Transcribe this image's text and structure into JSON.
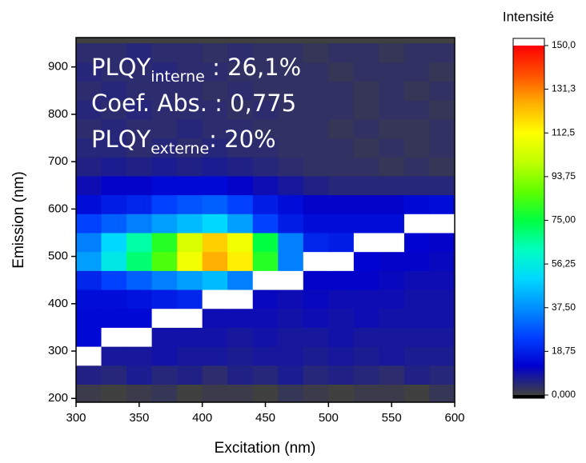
{
  "chart_data": {
    "type": "heatmap",
    "x_label": "Excitation (nm)",
    "y_label": "Emission (nm)",
    "colorbar_title": "Intensité",
    "annotations": [
      {
        "text": "PLQY",
        "sub": "interne",
        "rest": " : 26,1%"
      },
      {
        "text": "Coef. Abs. : 0,775"
      },
      {
        "text": "PLQY",
        "sub": "externe",
        "rest": ": 20%"
      }
    ],
    "x": [
      310,
      330,
      350,
      370,
      390,
      410,
      430,
      450,
      470,
      490,
      510,
      530,
      550,
      570,
      590
    ],
    "y": [
      210,
      250,
      290,
      330,
      370,
      410,
      450,
      490,
      530,
      570,
      610,
      650,
      690,
      730,
      770,
      810,
      850,
      890,
      930
    ],
    "z": [
      [
        1,
        0,
        1,
        2,
        0,
        1,
        1,
        0,
        2,
        1,
        0,
        1,
        1,
        0,
        2
      ],
      [
        6,
        5,
        7,
        5,
        6,
        4,
        6,
        5,
        7,
        5,
        6,
        5,
        4,
        6,
        5
      ],
      [
        160,
        8,
        8,
        9,
        8,
        8,
        7,
        8,
        8,
        7,
        8,
        7,
        8,
        7,
        7
      ],
      [
        14,
        160,
        160,
        9,
        9,
        9,
        8,
        9,
        8,
        8,
        9,
        8,
        8,
        8,
        8
      ],
      [
        14,
        14,
        14,
        160,
        160,
        10,
        10,
        10,
        9,
        10,
        9,
        10,
        9,
        9,
        9
      ],
      [
        15,
        15,
        16,
        18,
        20,
        160,
        160,
        11,
        10,
        11,
        10,
        10,
        10,
        9,
        9
      ],
      [
        20,
        25,
        30,
        35,
        40,
        45,
        35,
        160,
        160,
        12,
        12,
        12,
        11,
        10,
        10
      ],
      [
        40,
        55,
        70,
        85,
        110,
        125,
        115,
        80,
        35,
        160,
        160,
        13,
        12,
        12,
        11
      ],
      [
        35,
        50,
        65,
        80,
        105,
        120,
        110,
        75,
        35,
        20,
        18,
        160,
        160,
        13,
        12
      ],
      [
        25,
        30,
        35,
        40,
        45,
        50,
        40,
        25,
        18,
        15,
        15,
        15,
        15,
        160,
        160
      ],
      [
        15,
        18,
        20,
        25,
        28,
        30,
        25,
        18,
        15,
        12,
        12,
        12,
        12,
        14,
        15
      ],
      [
        10,
        12,
        12,
        14,
        14,
        14,
        12,
        10,
        8,
        6,
        5,
        5,
        5,
        5,
        5
      ],
      [
        6,
        7,
        6,
        7,
        6,
        7,
        6,
        5,
        4,
        3,
        3,
        3,
        2,
        3,
        2
      ],
      [
        5,
        5,
        4,
        5,
        4,
        5,
        4,
        4,
        3,
        3,
        3,
        2,
        3,
        2,
        3
      ],
      [
        4,
        5,
        4,
        4,
        5,
        4,
        4,
        3,
        3,
        3,
        2,
        3,
        2,
        2,
        3
      ],
      [
        5,
        4,
        5,
        4,
        4,
        4,
        3,
        4,
        3,
        3,
        3,
        2,
        3,
        3,
        2
      ],
      [
        4,
        5,
        4,
        4,
        4,
        3,
        4,
        3,
        3,
        3,
        3,
        2,
        3,
        2,
        3
      ],
      [
        5,
        4,
        4,
        5,
        4,
        4,
        3,
        3,
        3,
        3,
        2,
        3,
        3,
        3,
        2
      ],
      [
        4,
        4,
        5,
        4,
        4,
        3,
        4,
        3,
        3,
        2,
        3,
        3,
        2,
        3,
        3
      ]
    ],
    "xlim": [
      300,
      600
    ],
    "ylim": [
      192,
      962
    ],
    "xticks": [
      300,
      350,
      400,
      450,
      500,
      550,
      600
    ],
    "yticks": [
      200,
      300,
      400,
      500,
      600,
      700,
      800,
      900
    ],
    "zlim": [
      0,
      150
    ],
    "zticks": [
      {
        "value": 0,
        "label": "0,000"
      },
      {
        "value": 18.75,
        "label": "18,75"
      },
      {
        "value": 37.5,
        "label": "37,50"
      },
      {
        "value": 56.25,
        "label": "56,25"
      },
      {
        "value": 75,
        "label": "75,00"
      },
      {
        "value": 93.75,
        "label": "93,75"
      },
      {
        "value": 112.5,
        "label": "112,5"
      },
      {
        "value": 131.3,
        "label": "131,3"
      },
      {
        "value": 150,
        "label": "150,0"
      }
    ],
    "colors": [
      "#404040",
      "#0000d0",
      "#0040ff",
      "#0090ff",
      "#00d8ff",
      "#00ffc0",
      "#00ff40",
      "#60ff00",
      "#c0ff00",
      "#ffff00",
      "#ffb000",
      "#ff5000",
      "#ff0000"
    ],
    "under_color": "#000000",
    "over_color": "#ffffff"
  }
}
